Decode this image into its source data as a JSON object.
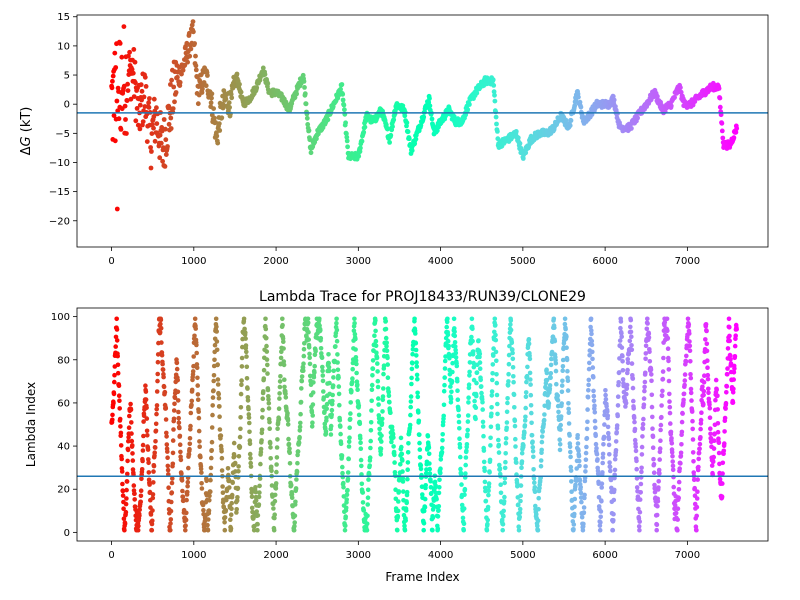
{
  "chart_data": [
    {
      "type": "scatter",
      "title": "",
      "xlabel": "",
      "ylabel_prefix": "Δ",
      "ylabel_var": "G",
      "ylabel_unit": " (kT)",
      "xlim": [
        -420,
        7980
      ],
      "ylim": [
        -24.5,
        15.3
      ],
      "xticks": [
        0,
        1000,
        2000,
        3000,
        4000,
        5000,
        6000,
        7000
      ],
      "yticks": [
        -20,
        -15,
        -10,
        -5,
        0,
        5,
        10,
        15
      ],
      "hline": -1.5,
      "hline_color": "#1f77b4",
      "colormap": "rainbow (reversed: red at frame 0, violet at last frame)",
      "n_frames": 7600,
      "trace_knots": [
        [
          0,
          0
        ],
        [
          120,
          4
        ],
        [
          260,
          6
        ],
        [
          330,
          -2
        ],
        [
          400,
          2
        ],
        [
          480,
          -6
        ],
        [
          540,
          -2
        ],
        [
          620,
          -8
        ],
        [
          700,
          -2
        ],
        [
          780,
          4
        ],
        [
          860,
          6
        ],
        [
          920,
          9
        ],
        [
          990,
          12
        ],
        [
          1050,
          2
        ],
        [
          1140,
          5
        ],
        [
          1200,
          2
        ],
        [
          1280,
          -6
        ],
        [
          1320,
          -2
        ],
        [
          1380,
          1
        ],
        [
          1450,
          0
        ],
        [
          1520,
          5
        ],
        [
          1600,
          0
        ],
        [
          1680,
          1
        ],
        [
          1760,
          3
        ],
        [
          1840,
          6
        ],
        [
          1920,
          2
        ],
        [
          2000,
          2
        ],
        [
          2080,
          1
        ],
        [
          2160,
          -1
        ],
        [
          2240,
          2
        ],
        [
          2330,
          5
        ],
        [
          2420,
          -8
        ],
        [
          2500,
          -5
        ],
        [
          2600,
          -3
        ],
        [
          2700,
          0
        ],
        [
          2800,
          3
        ],
        [
          2880,
          -9
        ],
        [
          3000,
          -9
        ],
        [
          3100,
          -2
        ],
        [
          3180,
          -3
        ],
        [
          3280,
          -1
        ],
        [
          3380,
          -6
        ],
        [
          3460,
          0
        ],
        [
          3560,
          -1
        ],
        [
          3640,
          -8
        ],
        [
          3740,
          -4
        ],
        [
          3860,
          1
        ],
        [
          3920,
          -5
        ],
        [
          4000,
          -3
        ],
        [
          4100,
          -1
        ],
        [
          4180,
          -3
        ],
        [
          4260,
          -3
        ],
        [
          4340,
          0
        ],
        [
          4420,
          2
        ],
        [
          4540,
          4
        ],
        [
          4640,
          4
        ],
        [
          4700,
          -7
        ],
        [
          4820,
          -6
        ],
        [
          4920,
          -5
        ],
        [
          5000,
          -9
        ],
        [
          5100,
          -6
        ],
        [
          5200,
          -5
        ],
        [
          5300,
          -5
        ],
        [
          5380,
          -4
        ],
        [
          5460,
          -2
        ],
        [
          5560,
          -4
        ],
        [
          5660,
          2
        ],
        [
          5740,
          -3
        ],
        [
          5800,
          -2
        ],
        [
          5900,
          0
        ],
        [
          6050,
          0
        ],
        [
          6100,
          1
        ],
        [
          6180,
          -4
        ],
        [
          6300,
          -4
        ],
        [
          6400,
          -2
        ],
        [
          6500,
          0
        ],
        [
          6600,
          2
        ],
        [
          6700,
          -1
        ],
        [
          6800,
          0
        ],
        [
          6900,
          3
        ],
        [
          6960,
          0
        ],
        [
          7040,
          0
        ],
        [
          7120,
          1
        ],
        [
          7200,
          2
        ],
        [
          7300,
          3
        ],
        [
          7380,
          3
        ],
        [
          7440,
          -7
        ],
        [
          7520,
          -7
        ],
        [
          7600,
          -4
        ]
      ]
    },
    {
      "type": "scatter",
      "title": "Lambda Trace for PROJ18433/RUN39/CLONE29",
      "xlabel": "Frame Index",
      "ylabel": "Lambda Index",
      "xlim": [
        -420,
        7980
      ],
      "ylim": [
        -4,
        104
      ],
      "xticks": [
        0,
        1000,
        2000,
        3000,
        4000,
        5000,
        6000,
        7000
      ],
      "yticks": [
        0,
        20,
        40,
        60,
        80,
        100
      ],
      "hline": 26,
      "hline_color": "#1f77b4",
      "colormap": "rainbow (reversed: red at frame 0, violet at last frame)",
      "n_frames": 7600,
      "lambda_min": 1,
      "lambda_max": 99
    }
  ]
}
